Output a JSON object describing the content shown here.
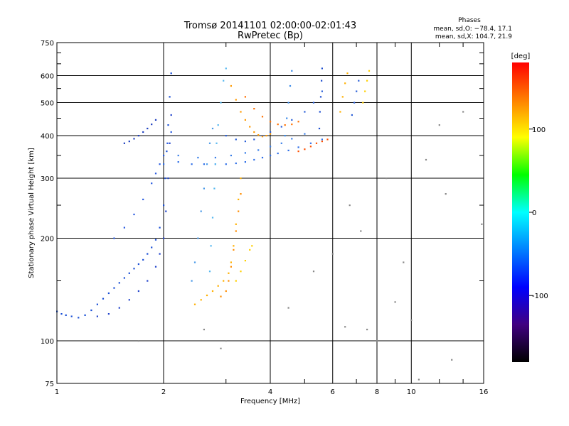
{
  "chart_data": {
    "type": "scatter",
    "title": "Tromsø 20141101 02:00:00-02:01:43",
    "subtitle": "RwPretec (Bp)",
    "xlabel": "Frequency [MHz]",
    "ylabel": "Stationary phase Virtual Height [km]",
    "x_scale": "log",
    "y_scale": "log",
    "xlim": [
      1,
      16
    ],
    "ylim": [
      75,
      750
    ],
    "x_ticks": [
      1,
      2,
      4,
      6,
      8,
      10,
      16
    ],
    "x_minor_ticks": [
      3,
      5,
      7,
      9,
      12,
      14
    ],
    "y_ticks": [
      75,
      100,
      200,
      300,
      400,
      500,
      600,
      750
    ],
    "y_minor_ticks": [
      150,
      250,
      350,
      450,
      550,
      650,
      700
    ],
    "grid": true,
    "info": {
      "heading": "Phases",
      "line1": "mean, sd,O: −78.4, 17.1",
      "line2": "mean, sd,X: 104.7, 21.9"
    },
    "colorbar": {
      "label": "[deg]",
      "range": [
        -180,
        180
      ],
      "ticks": [
        100,
        0,
        -100
      ],
      "colors": [
        "#ff0000",
        "#ff8000",
        "#ffff00",
        "#00ff00",
        "#00ffff",
        "#0080ff",
        "#0000ff",
        "#400080",
        "#000000"
      ]
    },
    "series": [
      {
        "color": "#1a4fd6",
        "points": [
          [
            1.0,
            122
          ],
          [
            1.03,
            120
          ],
          [
            1.06,
            119
          ],
          [
            1.1,
            118
          ],
          [
            1.15,
            117
          ],
          [
            1.2,
            119
          ],
          [
            1.25,
            123
          ],
          [
            1.3,
            128
          ],
          [
            1.35,
            133
          ],
          [
            1.4,
            138
          ],
          [
            1.45,
            143
          ],
          [
            1.5,
            148
          ],
          [
            1.55,
            153
          ],
          [
            1.6,
            158
          ],
          [
            1.65,
            163
          ],
          [
            1.7,
            168
          ],
          [
            1.75,
            173
          ],
          [
            1.8,
            180
          ],
          [
            1.85,
            188
          ],
          [
            1.9,
            198
          ],
          [
            1.95,
            215
          ],
          [
            2.0,
            250
          ],
          [
            2.02,
            300
          ],
          [
            2.04,
            360
          ],
          [
            2.06,
            430
          ],
          [
            2.08,
            520
          ],
          [
            2.1,
            610
          ]
        ]
      },
      {
        "color": "#2244cc",
        "points": [
          [
            1.3,
            118
          ],
          [
            1.4,
            120
          ],
          [
            1.5,
            125
          ],
          [
            1.6,
            132
          ],
          [
            1.7,
            140
          ],
          [
            1.8,
            150
          ],
          [
            1.9,
            165
          ],
          [
            1.95,
            180
          ],
          [
            2.0,
            200
          ],
          [
            2.03,
            240
          ],
          [
            2.06,
            300
          ],
          [
            2.08,
            380
          ],
          [
            2.1,
            460
          ]
        ]
      },
      {
        "color": "#2a5be0",
        "points": [
          [
            1.45,
            200
          ],
          [
            1.55,
            215
          ],
          [
            1.65,
            235
          ],
          [
            1.75,
            260
          ],
          [
            1.85,
            290
          ],
          [
            1.9,
            310
          ],
          [
            1.95,
            330
          ],
          [
            2.0,
            350
          ],
          [
            2.05,
            380
          ],
          [
            2.1,
            410
          ]
        ]
      },
      {
        "color": "#1e3fbf",
        "points": [
          [
            1.55,
            380
          ],
          [
            1.6,
            385
          ],
          [
            1.65,
            392
          ],
          [
            1.7,
            400
          ],
          [
            1.75,
            410
          ],
          [
            1.8,
            420
          ],
          [
            1.85,
            432
          ],
          [
            1.9,
            445
          ]
        ]
      },
      {
        "color": "#2f6fe8",
        "points": [
          [
            2.0,
            330
          ],
          [
            2.2,
            335
          ],
          [
            2.4,
            330
          ],
          [
            2.6,
            330
          ],
          [
            2.8,
            330
          ],
          [
            3.0,
            330
          ],
          [
            3.2,
            332
          ],
          [
            3.4,
            335
          ],
          [
            3.6,
            340
          ],
          [
            3.8,
            345
          ],
          [
            4.0,
            350
          ],
          [
            4.2,
            355
          ],
          [
            4.5,
            362
          ],
          [
            4.8,
            370
          ],
          [
            5.2,
            380
          ],
          [
            5.6,
            390
          ]
        ]
      },
      {
        "color": "#3a7fe8",
        "points": [
          [
            2.2,
            350
          ],
          [
            2.5,
            345
          ],
          [
            2.8,
            345
          ],
          [
            3.1,
            350
          ],
          [
            3.4,
            356
          ],
          [
            3.7,
            363
          ],
          [
            4.0,
            372
          ],
          [
            4.3,
            380
          ],
          [
            4.6,
            392
          ],
          [
            5.0,
            405
          ]
        ]
      },
      {
        "color": "#2a5fd8",
        "points": [
          [
            3.0,
            400
          ],
          [
            3.2,
            390
          ],
          [
            3.4,
            385
          ],
          [
            3.6,
            390
          ],
          [
            3.8,
            400
          ],
          [
            4.0,
            410
          ],
          [
            4.3,
            425
          ],
          [
            4.6,
            445
          ],
          [
            5.0,
            470
          ],
          [
            5.3,
            500
          ],
          [
            5.6,
            540
          ]
        ]
      },
      {
        "color": "#4a9ae8",
        "points": [
          [
            2.4,
            150
          ],
          [
            2.45,
            170
          ],
          [
            2.5,
            200
          ],
          [
            2.55,
            240
          ],
          [
            2.6,
            280
          ],
          [
            2.65,
            330
          ],
          [
            2.7,
            380
          ],
          [
            2.75,
            420
          ]
        ]
      },
      {
        "color": "#56b8f0",
        "points": [
          [
            2.7,
            160
          ],
          [
            2.72,
            190
          ],
          [
            2.75,
            230
          ],
          [
            2.78,
            280
          ],
          [
            2.8,
            330
          ],
          [
            2.82,
            380
          ],
          [
            2.85,
            430
          ],
          [
            2.9,
            500
          ],
          [
            2.95,
            580
          ],
          [
            3.0,
            630
          ]
        ]
      },
      {
        "color": "#ffb000",
        "points": [
          [
            2.45,
            128
          ],
          [
            2.55,
            132
          ],
          [
            2.65,
            136
          ],
          [
            2.75,
            140
          ],
          [
            2.85,
            145
          ],
          [
            2.95,
            150
          ],
          [
            3.05,
            158
          ],
          [
            3.1,
            170
          ],
          [
            3.15,
            190
          ],
          [
            3.2,
            220
          ],
          [
            3.25,
            260
          ],
          [
            3.3,
            300
          ]
        ]
      },
      {
        "color": "#ff8c00",
        "points": [
          [
            2.9,
            135
          ],
          [
            3.0,
            140
          ],
          [
            3.05,
            150
          ],
          [
            3.1,
            165
          ],
          [
            3.15,
            185
          ],
          [
            3.2,
            210
          ],
          [
            3.25,
            240
          ],
          [
            3.3,
            270
          ]
        ]
      },
      {
        "color": "#ffd000",
        "points": [
          [
            3.2,
            150
          ],
          [
            3.3,
            160
          ],
          [
            3.4,
            172
          ],
          [
            3.5,
            185
          ],
          [
            3.55,
            190
          ]
        ]
      },
      {
        "color": "#ff9a00",
        "points": [
          [
            3.1,
            560
          ],
          [
            3.2,
            510
          ],
          [
            3.3,
            470
          ],
          [
            3.4,
            445
          ],
          [
            3.5,
            425
          ],
          [
            3.6,
            410
          ],
          [
            3.7,
            402
          ],
          [
            3.8,
            398
          ],
          [
            3.9,
            400
          ],
          [
            4.0,
            405
          ]
        ]
      },
      {
        "color": "#ff7000",
        "points": [
          [
            3.4,
            520
          ],
          [
            3.6,
            480
          ],
          [
            3.8,
            455
          ],
          [
            4.0,
            440
          ],
          [
            4.2,
            432
          ],
          [
            4.4,
            430
          ],
          [
            4.6,
            432
          ],
          [
            4.8,
            440
          ]
        ]
      },
      {
        "color": "#ff5000",
        "points": [
          [
            4.8,
            360
          ],
          [
            5.0,
            365
          ],
          [
            5.2,
            372
          ],
          [
            5.4,
            380
          ],
          [
            5.6,
            385
          ],
          [
            5.8,
            390
          ]
        ]
      },
      {
        "color": "#3a8ae8",
        "points": [
          [
            4.4,
            400
          ],
          [
            4.45,
            450
          ],
          [
            4.5,
            500
          ],
          [
            4.55,
            560
          ],
          [
            4.6,
            620
          ]
        ]
      },
      {
        "color": "#2050d0",
        "points": [
          [
            5.5,
            420
          ],
          [
            5.52,
            470
          ],
          [
            5.55,
            520
          ],
          [
            5.58,
            580
          ],
          [
            5.6,
            630
          ]
        ]
      },
      {
        "color": "#ffb000",
        "points": [
          [
            6.3,
            470
          ],
          [
            6.4,
            520
          ],
          [
            6.5,
            570
          ],
          [
            6.6,
            610
          ]
        ]
      },
      {
        "color": "#ffd000",
        "points": [
          [
            7.3,
            500
          ],
          [
            7.4,
            540
          ],
          [
            7.5,
            580
          ],
          [
            7.6,
            620
          ]
        ]
      },
      {
        "color": "#2a5fd8",
        "points": [
          [
            6.8,
            460
          ],
          [
            6.9,
            500
          ],
          [
            7.0,
            540
          ],
          [
            7.1,
            580
          ]
        ]
      },
      {
        "color": "#888888",
        "points": [
          [
            1.7,
            100
          ],
          [
            2.9,
            95
          ],
          [
            3.0,
            100
          ],
          [
            2.6,
            108
          ],
          [
            6.5,
            110
          ],
          [
            7.5,
            108
          ],
          [
            8.0,
            100
          ],
          [
            9.0,
            130
          ],
          [
            10.0,
            115
          ],
          [
            10.5,
            77
          ],
          [
            11.0,
            340
          ],
          [
            12.0,
            430
          ],
          [
            12.5,
            270
          ],
          [
            13.0,
            88
          ],
          [
            14.0,
            470
          ],
          [
            6.0,
            180
          ],
          [
            5.3,
            160
          ],
          [
            8.5,
            300
          ],
          [
            7.2,
            210
          ],
          [
            9.5,
            170
          ],
          [
            4.5,
            125
          ],
          [
            6.7,
            250
          ],
          [
            15.8,
            220
          ]
        ]
      }
    ]
  }
}
